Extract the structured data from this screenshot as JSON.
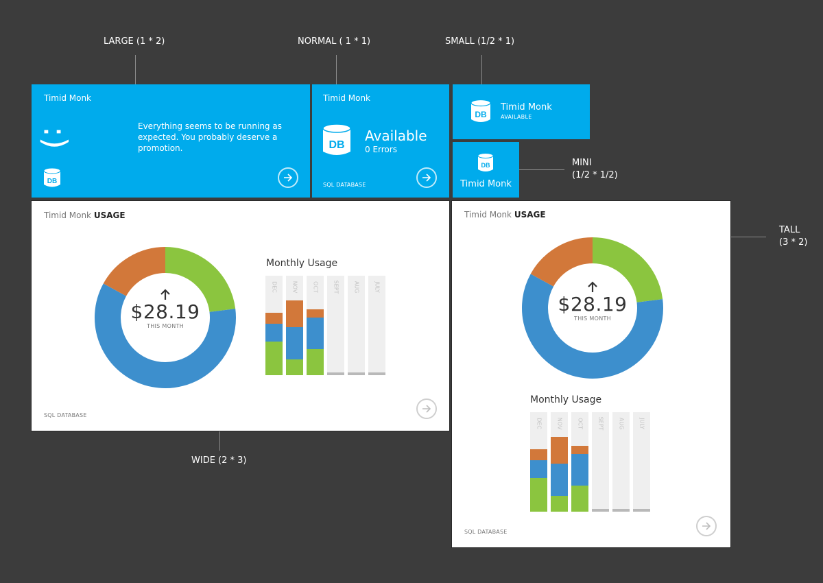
{
  "annotations": {
    "large": "LARGE (1 * 2)",
    "normal": "NORMAL ( 1 * 1)",
    "small": "SMALL (1/2 * 1)",
    "mini": "MINI\n(1/2 * 1/2)",
    "wide": "WIDE (2 * 3)",
    "tall": "TALL\n(3 * 2)"
  },
  "colors": {
    "tile_blue": "#00abec",
    "green": "#8bc53f",
    "blue": "#3d8fcd",
    "orange": "#d2783a",
    "empty_bar": "#efefef",
    "empty_base": "#b9b9b9"
  },
  "large_tile": {
    "title": "Timid Monk",
    "smiley": ":)",
    "message": "Everything seems to be running as expected. You probably deserve a promotion.",
    "icon": "db-icon",
    "icon_text": "DB",
    "arrow_icon": "arrow-right-circle-icon"
  },
  "normal_tile": {
    "title": "Timid Monk",
    "status": "Available",
    "errors": "0 Errors",
    "footer": "SQL DATABASE",
    "icon_text": "DB",
    "arrow_icon": "arrow-right-circle-icon"
  },
  "small_tile": {
    "title": "Timid Monk",
    "status": "AVAILABLE",
    "icon_text": "DB"
  },
  "mini_tile": {
    "title": "Timid Monk",
    "icon_text": "DB"
  },
  "wide_tile": {
    "title_name": "Timid Monk",
    "title_suffix": "USAGE",
    "amount": "$28.19",
    "amount_caption": "THIS MONTH",
    "monthly_title": "Monthly Usage",
    "footer": "SQL DATABASE",
    "trend_icon": "arrow-up-icon"
  },
  "tall_tile": {
    "title_name": "Timid Monk",
    "title_suffix": "USAGE",
    "amount": "$28.19",
    "amount_caption": "THIS MONTH",
    "monthly_title": "Monthly Usage",
    "footer": "SQL DATABASE",
    "trend_icon": "arrow-up-icon"
  },
  "chart_data": [
    {
      "type": "pie",
      "variant": "donut",
      "categories": [
        "green",
        "blue",
        "orange"
      ],
      "values": [
        23,
        60,
        17
      ],
      "center_text": "$28.19",
      "center_caption": "THIS MONTH"
    },
    {
      "type": "bar",
      "stacked": true,
      "title": "Monthly Usage",
      "categories": [
        "DEC",
        "NOV",
        "OCT",
        "SEPT",
        "AUG",
        "JULY"
      ],
      "series": [
        {
          "color": "green",
          "values": [
            34,
            16,
            26,
            0,
            0,
            0
          ]
        },
        {
          "color": "blue",
          "values": [
            18,
            32,
            32,
            0,
            0,
            0
          ]
        },
        {
          "color": "orange",
          "values": [
            11,
            27,
            8,
            0,
            0,
            0
          ]
        }
      ],
      "ylim": [
        0,
        100
      ]
    }
  ]
}
